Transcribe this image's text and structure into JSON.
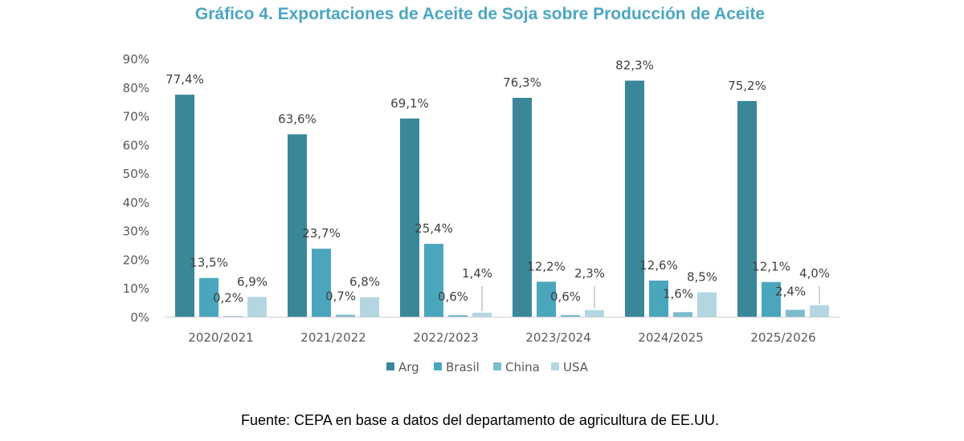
{
  "title": "Gráfico 4. Exportaciones de Aceite de Soja sobre Producción de Aceite",
  "source": "Fuente: CEPA en base a datos del departamento de agricultura de EE.UU.",
  "chart_data": {
    "type": "bar",
    "title": "Gráfico 4. Exportaciones de Aceite de Soja sobre Producción de Aceite",
    "xlabel": "",
    "ylabel": "",
    "ylim": [
      0,
      90
    ],
    "yticks": [
      "0%",
      "10%",
      "20%",
      "30%",
      "40%",
      "50%",
      "60%",
      "70%",
      "80%",
      "90%"
    ],
    "categories": [
      "2020/2021",
      "2021/2022",
      "2022/2023",
      "2023/2024",
      "2024/2025",
      "2025/2026"
    ],
    "series": [
      {
        "name": "Arg",
        "color": "#3a879a",
        "values": [
          77.4,
          63.6,
          69.1,
          76.3,
          82.3,
          75.2
        ],
        "labels": [
          "77,4%",
          "63,6%",
          "69,1%",
          "76,3%",
          "82,3%",
          "75,2%"
        ]
      },
      {
        "name": "Brasil",
        "color": "#4aa6bd",
        "values": [
          13.5,
          23.7,
          25.4,
          12.2,
          12.6,
          12.1
        ],
        "labels": [
          "13,5%",
          "23,7%",
          "25,4%",
          "12,2%",
          "12,6%",
          "12,1%"
        ]
      },
      {
        "name": "China",
        "color": "#7dbcce",
        "values": [
          0.2,
          0.7,
          0.6,
          0.6,
          1.6,
          2.4
        ],
        "labels": [
          "0,2%",
          "0,7%",
          "0,6%",
          "0,6%",
          "1,6%",
          "2,4%"
        ]
      },
      {
        "name": "USA",
        "color": "#b3d6e1",
        "values": [
          6.9,
          6.8,
          1.4,
          2.3,
          8.5,
          4.0
        ],
        "labels": [
          "6,9%",
          "6,8%",
          "1,4%",
          "2,3%",
          "8,5%",
          "4,0%"
        ]
      }
    ],
    "legend": "bottom",
    "grid": false
  }
}
